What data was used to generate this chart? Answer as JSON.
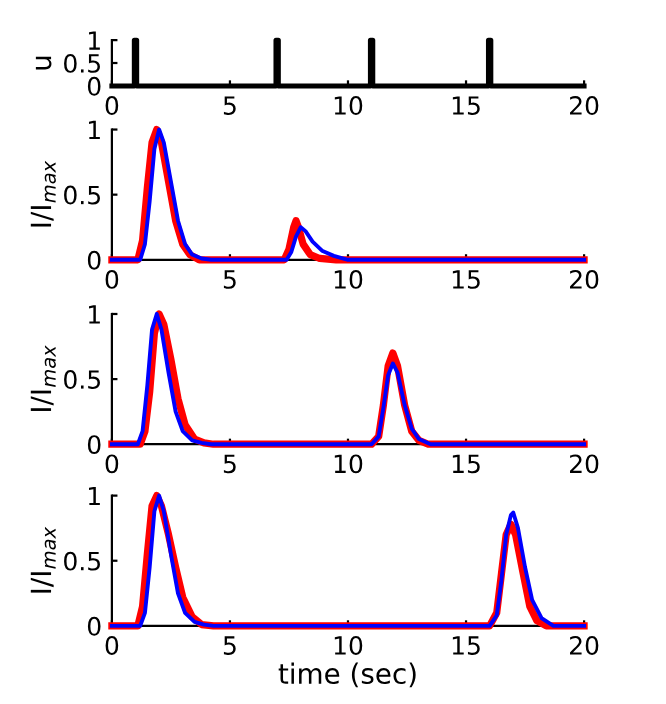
{
  "chart_data": [
    {
      "type": "line",
      "ylabel": "u",
      "xlim": [
        0,
        20
      ],
      "ylim": [
        0,
        1
      ],
      "xticks": [
        0,
        5,
        10,
        15,
        20
      ],
      "yticks": [
        0,
        0.5,
        1
      ],
      "grid": false,
      "legend": false,
      "line_style": "solid",
      "marker": "none",
      "series": [
        {
          "color": "#000000",
          "x": [
            0,
            0.95,
            0.95,
            1.05,
            1.05,
            6.95,
            6.95,
            7.05,
            7.05,
            10.95,
            10.95,
            11.05,
            11.05,
            15.95,
            15.95,
            16.05,
            16.05,
            20
          ],
          "values": [
            0,
            0,
            1,
            1,
            0,
            0,
            1,
            1,
            0,
            0,
            1,
            1,
            0,
            0,
            1,
            1,
            0,
            0
          ]
        }
      ]
    },
    {
      "type": "line",
      "ylabel": "I/I$_{max}$",
      "xlim": [
        0,
        20
      ],
      "ylim": [
        0,
        1
      ],
      "xticks": [
        0,
        5,
        10,
        15,
        20
      ],
      "yticks": [
        0,
        0.5,
        1
      ],
      "grid": false,
      "legend": false,
      "line_style": "solid",
      "marker": "none",
      "series": [
        {
          "color": "#ff0000",
          "x": [
            0,
            1.1,
            1.3,
            1.5,
            1.7,
            1.9,
            2.1,
            2.4,
            2.7,
            3.0,
            3.3,
            3.7,
            4.0,
            7.3,
            7.5,
            7.7,
            7.8,
            7.9,
            8.1,
            8.4,
            8.8,
            9.5,
            20
          ],
          "values": [
            0,
            0,
            0.15,
            0.55,
            0.9,
            1.0,
            0.9,
            0.6,
            0.3,
            0.12,
            0.04,
            0,
            0,
            0,
            0.08,
            0.25,
            0.3,
            0.25,
            0.12,
            0.04,
            0.01,
            0,
            0
          ]
        },
        {
          "color": "#0000ff",
          "x": [
            0,
            1.2,
            1.4,
            1.6,
            1.8,
            2.0,
            2.2,
            2.5,
            2.8,
            3.1,
            3.4,
            3.8,
            4.2,
            7.4,
            7.6,
            7.8,
            8.0,
            8.2,
            8.5,
            8.9,
            9.4,
            10.0,
            20
          ],
          "values": [
            0,
            0,
            0.12,
            0.45,
            0.85,
            1.0,
            0.9,
            0.6,
            0.3,
            0.12,
            0.04,
            0.01,
            0,
            0,
            0.06,
            0.18,
            0.25,
            0.22,
            0.14,
            0.07,
            0.03,
            0,
            0
          ]
        }
      ]
    },
    {
      "type": "line",
      "ylabel": "I/I$_{max}$",
      "xlim": [
        0,
        20
      ],
      "ylim": [
        0,
        1
      ],
      "xticks": [
        0,
        5,
        10,
        15,
        20
      ],
      "yticks": [
        0,
        0.5,
        1
      ],
      "grid": false,
      "legend": false,
      "line_style": "solid",
      "marker": "none",
      "series": [
        {
          "color": "#ff0000",
          "x": [
            0,
            1.2,
            1.4,
            1.6,
            1.8,
            2.0,
            2.2,
            2.5,
            2.8,
            3.1,
            3.5,
            3.9,
            4.3,
            11.0,
            11.3,
            11.5,
            11.7,
            11.9,
            12.1,
            12.4,
            12.7,
            13.0,
            13.4,
            20
          ],
          "values": [
            0,
            0,
            0.1,
            0.4,
            0.85,
            1.0,
            0.92,
            0.65,
            0.35,
            0.15,
            0.04,
            0.01,
            0,
            0,
            0.06,
            0.3,
            0.6,
            0.7,
            0.6,
            0.3,
            0.1,
            0.03,
            0,
            0
          ]
        },
        {
          "color": "#0000ff",
          "x": [
            0,
            1.1,
            1.3,
            1.5,
            1.7,
            1.9,
            2.1,
            2.4,
            2.7,
            3.0,
            3.4,
            3.8,
            4.2,
            11.0,
            11.3,
            11.5,
            11.7,
            11.9,
            12.1,
            12.4,
            12.7,
            13.0,
            13.5,
            20
          ],
          "values": [
            0,
            0,
            0.1,
            0.45,
            0.88,
            1.0,
            0.88,
            0.55,
            0.25,
            0.1,
            0.03,
            0.01,
            0,
            0,
            0.06,
            0.28,
            0.53,
            0.62,
            0.55,
            0.3,
            0.12,
            0.04,
            0,
            0
          ]
        }
      ]
    },
    {
      "type": "line",
      "ylabel": "I/I$_{max}$",
      "xlabel": "time (sec)",
      "xlim": [
        0,
        20
      ],
      "ylim": [
        0,
        1
      ],
      "xticks": [
        0,
        5,
        10,
        15,
        20
      ],
      "yticks": [
        0,
        0.5,
        1
      ],
      "grid": false,
      "legend": false,
      "line_style": "solid",
      "marker": "none",
      "series": [
        {
          "color": "#ff0000",
          "x": [
            0,
            1.1,
            1.3,
            1.5,
            1.7,
            1.9,
            2.1,
            2.4,
            2.7,
            3.0,
            3.4,
            3.8,
            4.3,
            16.0,
            16.3,
            16.5,
            16.7,
            16.9,
            17.1,
            17.4,
            17.7,
            18.0,
            18.4,
            20
          ],
          "values": [
            0,
            0,
            0.15,
            0.55,
            0.92,
            1.0,
            0.92,
            0.7,
            0.45,
            0.22,
            0.07,
            0.01,
            0,
            0,
            0.1,
            0.4,
            0.7,
            0.78,
            0.7,
            0.42,
            0.15,
            0.04,
            0,
            0
          ]
        },
        {
          "color": "#0000ff",
          "x": [
            0,
            1.2,
            1.4,
            1.6,
            1.8,
            2.0,
            2.2,
            2.5,
            2.8,
            3.1,
            3.5,
            3.9,
            4.3,
            16.0,
            16.3,
            16.5,
            16.7,
            16.9,
            17.0,
            17.2,
            17.5,
            17.8,
            18.2,
            18.7,
            20
          ],
          "values": [
            0,
            0,
            0.1,
            0.45,
            0.88,
            1.0,
            0.88,
            0.55,
            0.25,
            0.1,
            0.03,
            0.01,
            0,
            0,
            0.08,
            0.35,
            0.7,
            0.85,
            0.87,
            0.75,
            0.45,
            0.2,
            0.06,
            0,
            0
          ]
        }
      ]
    }
  ]
}
